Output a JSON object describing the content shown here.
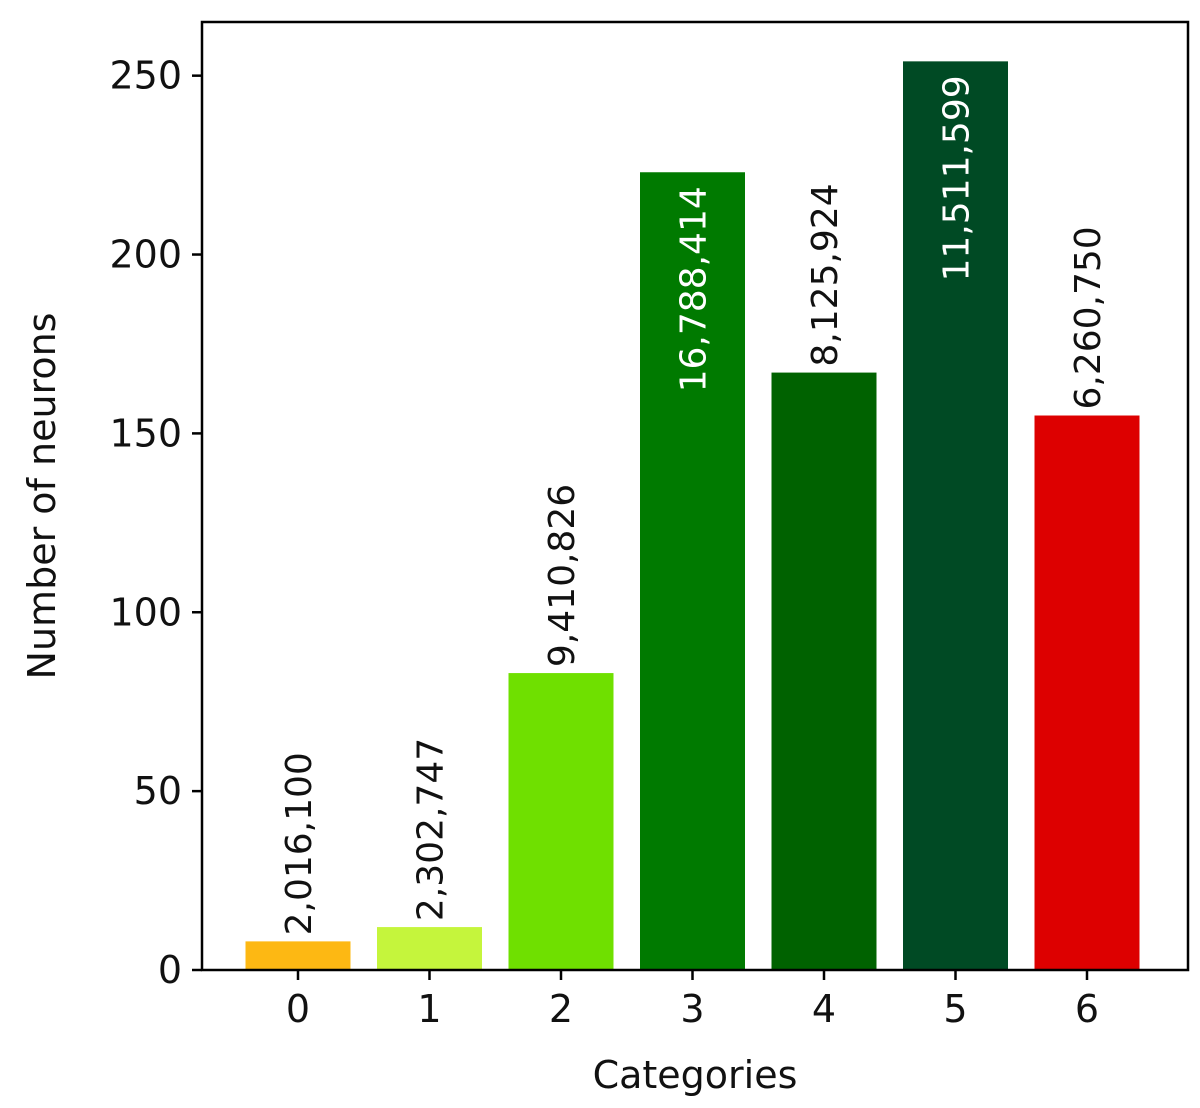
{
  "chart_data": {
    "type": "bar",
    "xlabel": "Categories",
    "ylabel": "Number of neurons",
    "ylim": [
      0,
      265
    ],
    "yticks": [
      0,
      50,
      100,
      150,
      200,
      250
    ],
    "grid": false,
    "categories": [
      "0",
      "1",
      "2",
      "3",
      "4",
      "5",
      "6"
    ],
    "values": [
      8,
      12,
      83,
      223,
      167,
      254,
      155
    ],
    "bar_labels": [
      "2,016,100",
      "2,302,747",
      "9,410,826",
      "16,788,414",
      "8,125,924",
      "11,511,599",
      "6,260,750"
    ],
    "bar_label_placement": [
      "above",
      "above",
      "above",
      "inside",
      "above",
      "inside",
      "above"
    ],
    "colors": [
      "#fdb813",
      "#c5f53c",
      "#6fe000",
      "#007a00",
      "#006200",
      "#004a24",
      "#dd0000"
    ]
  }
}
